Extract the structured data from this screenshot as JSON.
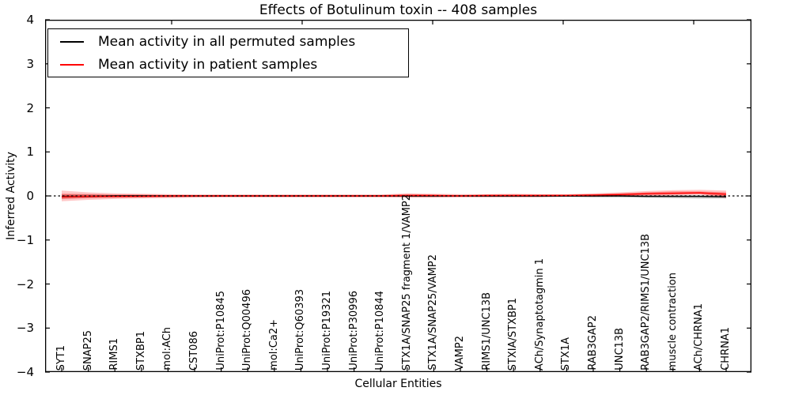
{
  "chart_data": {
    "type": "line",
    "title": "Effects of Botulinum toxin -- 408 samples",
    "xlabel": "Cellular Entities",
    "ylabel": "Inferred Activity",
    "ylim": [
      -4,
      4
    ],
    "yticks": [
      "4",
      "3",
      "2",
      "1",
      "0",
      "−1",
      "−2",
      "−3",
      "−4"
    ],
    "grid": false,
    "legend_position": "upper left",
    "zero_line": {
      "y": 0,
      "style": "dotted",
      "color": "#000000"
    },
    "categories": [
      "SYT1",
      "SNAP25",
      "RIMS1",
      "STXBP1",
      "mol:ACh",
      "CST086",
      "UniProt:P10845",
      "UniProt:Q00496",
      "mol:Ca2+",
      "UniProt:Q60393",
      "UniProt:P19321",
      "UniProt:P30996",
      "UniProt:P10844",
      "STX1A/SNAP25 fragment 1/VAMP2",
      "STX1A/SNAP25/VAMP2",
      "VAMP2",
      "RIMS1/UNC13B",
      "STXIA/STXBP1",
      "ACh/Synaptotagmin 1",
      "STX1A",
      "RAB3GAP2",
      "UNC13B",
      "RAB3GAP2/RIMS1/UNC13B",
      "muscle contraction",
      "ACh/CHRNA1",
      "CHRNA1"
    ],
    "series": [
      {
        "name": "Mean activity in all permuted samples",
        "color": "#000000",
        "values": [
          -0.01,
          -0.01,
          0.0,
          0.0,
          0.0,
          0.0,
          0.0,
          0.0,
          0.0,
          0.0,
          0.0,
          0.0,
          0.0,
          0.0,
          0.0,
          0.0,
          0.0,
          0.0,
          0.0,
          0.0,
          0.0,
          0.0,
          -0.01,
          -0.01,
          -0.01,
          -0.02
        ],
        "bands": [
          {
            "color": "rgba(128,128,128,0.45)",
            "lower": [
              -0.06,
              -0.04,
              -0.03,
              -0.03,
              -0.02,
              -0.02,
              -0.02,
              -0.02,
              -0.02,
              -0.02,
              -0.02,
              -0.02,
              -0.02,
              -0.02,
              -0.02,
              -0.02,
              -0.02,
              -0.02,
              -0.02,
              -0.02,
              -0.03,
              -0.03,
              -0.04,
              -0.05,
              -0.06,
              -0.06
            ],
            "upper": [
              0.03,
              0.03,
              0.02,
              0.02,
              0.02,
              0.02,
              0.02,
              0.02,
              0.02,
              0.02,
              0.02,
              0.02,
              0.02,
              0.02,
              0.02,
              0.02,
              0.02,
              0.02,
              0.02,
              0.02,
              0.02,
              0.02,
              0.02,
              0.02,
              0.02,
              0.02
            ]
          }
        ]
      },
      {
        "name": "Mean activity in patient samples",
        "color": "#ff0000",
        "values": [
          -0.02,
          -0.01,
          -0.01,
          -0.01,
          0.0,
          0.0,
          0.0,
          0.0,
          0.0,
          0.0,
          0.0,
          0.0,
          0.0,
          0.01,
          0.01,
          0.0,
          0.01,
          0.01,
          0.01,
          0.01,
          0.02,
          0.03,
          0.05,
          0.06,
          0.07,
          0.04
        ],
        "bands": [
          {
            "color": "rgba(255,0,0,0.22)",
            "lower": [
              -0.12,
              -0.09,
              -0.07,
              -0.06,
              -0.05,
              -0.04,
              -0.03,
              -0.03,
              -0.03,
              -0.03,
              -0.03,
              -0.03,
              -0.03,
              -0.04,
              -0.04,
              -0.03,
              -0.03,
              -0.03,
              -0.03,
              -0.02,
              -0.02,
              -0.01,
              0.0,
              0.01,
              0.03,
              -0.05
            ],
            "upper": [
              0.12,
              0.08,
              0.06,
              0.05,
              0.04,
              0.03,
              0.03,
              0.03,
              0.03,
              0.03,
              0.03,
              0.03,
              0.03,
              0.06,
              0.05,
              0.04,
              0.04,
              0.05,
              0.04,
              0.04,
              0.06,
              0.08,
              0.11,
              0.13,
              0.14,
              0.12
            ]
          },
          {
            "color": "rgba(255,0,0,0.35)",
            "lower": [
              -0.07,
              -0.05,
              -0.04,
              -0.03,
              -0.03,
              -0.02,
              -0.02,
              -0.02,
              -0.02,
              -0.02,
              -0.02,
              -0.02,
              -0.02,
              -0.02,
              -0.02,
              -0.02,
              -0.02,
              -0.02,
              -0.02,
              -0.01,
              -0.01,
              0.0,
              0.02,
              0.03,
              0.04,
              -0.01
            ],
            "upper": [
              0.05,
              0.04,
              0.03,
              0.03,
              0.02,
              0.02,
              0.02,
              0.02,
              0.02,
              0.02,
              0.02,
              0.02,
              0.02,
              0.04,
              0.03,
              0.02,
              0.03,
              0.03,
              0.03,
              0.03,
              0.04,
              0.06,
              0.08,
              0.1,
              0.1,
              0.08
            ]
          }
        ]
      }
    ]
  }
}
